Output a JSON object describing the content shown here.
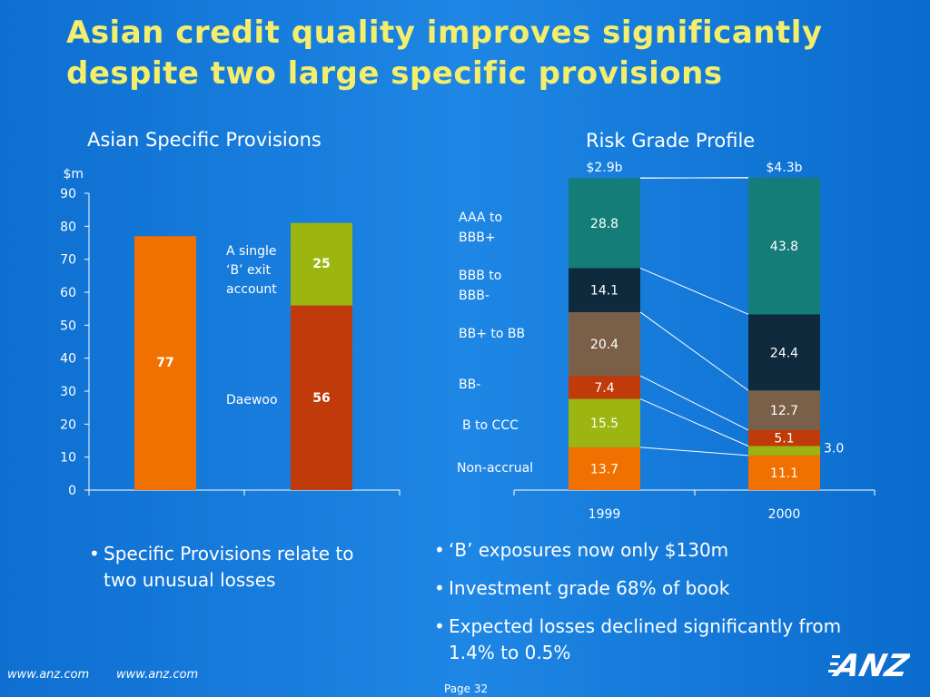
{
  "page": {
    "title_line1": "Asian credit quality improves significantly",
    "title_line2": "despite two large specific provisions",
    "left_bullets": [
      "Specific Provisions relate to two unusual losses"
    ],
    "right_bullets": [
      "‘B’ exposures now only $130m",
      "Investment grade 68% of book",
      "Expected losses declined significantly from 1.4% to 0.5%"
    ],
    "footer_url_1": "www.anz.com",
    "footer_url_2": "www.anz.com",
    "page_number": "Page 32",
    "logo_text": "ANZ",
    "colors": {
      "title": "#f3ee6c",
      "orange": "#f07000",
      "red": "#c03a0a",
      "green": "#9cb510",
      "teal": "#147d78",
      "navy": "#0f2a3c",
      "brown": "#7a6048"
    }
  },
  "chart_data": [
    {
      "type": "bar",
      "title": "Asian Specific Provisions",
      "ylabel": "$m",
      "ylim": [
        0,
        90
      ],
      "yticks": [
        0,
        10,
        20,
        30,
        40,
        50,
        60,
        70,
        80,
        90
      ],
      "bars": [
        {
          "segments": [
            {
              "value": 77,
              "label": "77",
              "color": "#f07000"
            }
          ]
        },
        {
          "segments": [
            {
              "value": 56,
              "label": "56",
              "name": "Daewoo",
              "color": "#c03a0a"
            },
            {
              "value": 25,
              "label": "25",
              "name": "A single ‘B’ exit account",
              "color": "#9cb510"
            }
          ]
        }
      ],
      "annotations": [
        "A single",
        "‘B’ exit",
        "account",
        "Daewoo"
      ]
    },
    {
      "type": "bar",
      "title": "Risk Grade Profile",
      "categories": [
        "1999",
        "2000"
      ],
      "totals": [
        "$2.9b",
        "$4.3b"
      ],
      "series": [
        {
          "name": "Non-accrual",
          "values": [
            13.7,
            11.1
          ],
          "labels": [
            "13.7",
            "11.1"
          ],
          "color": "#f07000"
        },
        {
          "name": "B to CCC",
          "values": [
            15.5,
            3.0
          ],
          "labels": [
            "15.5",
            "3.0"
          ],
          "color": "#9cb510"
        },
        {
          "name": "BB-",
          "values": [
            7.4,
            5.1
          ],
          "labels": [
            "7.4",
            "5.1"
          ],
          "color": "#c03a0a"
        },
        {
          "name": "BB+ to BB",
          "values": [
            20.4,
            12.7
          ],
          "labels": [
            "20.4",
            "12.7"
          ],
          "color": "#7a6048"
        },
        {
          "name": "BBB to BBB-",
          "values": [
            14.1,
            24.4
          ],
          "labels": [
            "14.1",
            "24.4"
          ],
          "color": "#0f2a3c"
        },
        {
          "name": "AAA to BBB+",
          "values": [
            28.8,
            43.8
          ],
          "labels": [
            "28.8",
            "43.8"
          ],
          "color": "#147d78"
        }
      ],
      "legend_lines": [
        [
          "AAA to",
          "BBB+"
        ],
        [
          "BBB to",
          "BBB-"
        ],
        [
          "BB+ to BB"
        ],
        [
          "BB-"
        ],
        [
          "B to CCC"
        ],
        [
          "Non-accrual"
        ]
      ]
    }
  ]
}
